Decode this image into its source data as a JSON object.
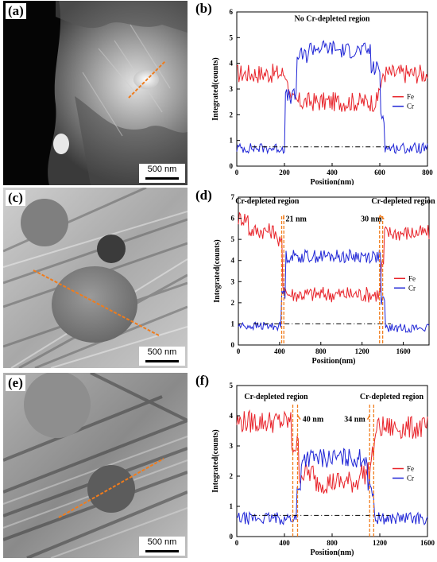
{
  "panels": {
    "a": {
      "tag": "(a)",
      "scale_label": "500 nm"
    },
    "c": {
      "tag": "(c)",
      "scale_label": "500 nm"
    },
    "e": {
      "tag": "(e)",
      "scale_label": "500 nm"
    },
    "b": {
      "tag": "(b)"
    },
    "d": {
      "tag": "(d)"
    },
    "f": {
      "tag": "(f)"
    }
  },
  "colors": {
    "fe": "#e8232a",
    "cr": "#1f25d6",
    "marker": "#f07c1c",
    "reference": "#000000"
  },
  "chart_data": [
    {
      "id": "b",
      "type": "line",
      "xlabel": "Position(nm)",
      "ylabel": "Integrated(counts)",
      "xlim": [
        0,
        800
      ],
      "ylim": [
        0,
        6
      ],
      "xticks": [
        0,
        200,
        400,
        600,
        800
      ],
      "yticks": [
        0,
        1,
        2,
        3,
        4,
        5,
        6
      ],
      "legend": "right",
      "annotations": [
        {
          "text": "No Cr-depleted region",
          "x": 400,
          "y": 5.65
        }
      ],
      "reference_line": 0.75,
      "depleted_markers": [],
      "series": [
        {
          "name": "Fe",
          "segments": [
            [
              0,
              210,
              3.6
            ],
            [
              210,
              225,
              3.1
            ],
            [
              225,
              595,
              2.5
            ],
            [
              595,
              610,
              3.1
            ],
            [
              610,
              800,
              3.6
            ]
          ]
        },
        {
          "name": "Cr",
          "segments": [
            [
              0,
              200,
              0.7
            ],
            [
              200,
              250,
              2.7
            ],
            [
              250,
              300,
              4.3
            ],
            [
              300,
              420,
              4.6
            ],
            [
              420,
              560,
              4.5
            ],
            [
              560,
              600,
              3.8
            ],
            [
              600,
              620,
              2.0
            ],
            [
              620,
              800,
              0.7
            ]
          ]
        }
      ]
    },
    {
      "id": "d",
      "type": "line",
      "xlabel": "Position(nm)",
      "ylabel": "Integrated(counts)",
      "xlim": [
        0,
        1850
      ],
      "ylim": [
        0,
        7
      ],
      "xticks": [
        0,
        400,
        800,
        1200,
        1600
      ],
      "yticks": [
        0,
        1,
        2,
        3,
        4,
        5,
        6,
        7
      ],
      "legend": "right",
      "annotations": [
        {
          "text": "Cr-depleted region",
          "x": 280,
          "y": 6.7
        },
        {
          "text": "21 nm",
          "x": 560,
          "y": 5.85
        },
        {
          "text": "Cr-depleted region",
          "x": 1600,
          "y": 6.7
        },
        {
          "text": "30 nm",
          "x": 1290,
          "y": 5.85
        }
      ],
      "reference_line": 1.0,
      "depleted_markers": [
        [
          420,
          441
        ],
        [
          1370,
          1400
        ]
      ],
      "series": [
        {
          "name": "Fe",
          "segments": [
            [
              0,
              100,
              6.0
            ],
            [
              100,
              380,
              5.4
            ],
            [
              380,
              430,
              4.8
            ],
            [
              430,
              470,
              2.8
            ],
            [
              470,
              1380,
              2.4
            ],
            [
              1380,
              1410,
              3.8
            ],
            [
              1410,
              1850,
              5.3
            ]
          ]
        },
        {
          "name": "Cr",
          "segments": [
            [
              0,
              420,
              0.9
            ],
            [
              420,
              460,
              2.5
            ],
            [
              460,
              1380,
              4.2
            ],
            [
              1380,
              1420,
              2.0
            ],
            [
              1420,
              1850,
              0.8
            ]
          ]
        }
      ]
    },
    {
      "id": "f",
      "type": "line",
      "xlabel": "Position(nm)",
      "ylabel": "Integrated(counts)",
      "xlim": [
        0,
        1600
      ],
      "ylim": [
        0,
        5
      ],
      "xticks": [
        0,
        400,
        800,
        1200,
        1600
      ],
      "yticks": [
        0,
        1,
        2,
        3,
        4,
        5
      ],
      "legend": "right",
      "annotations": [
        {
          "text": "Cr-depleted region",
          "x": 330,
          "y": 4.55
        },
        {
          "text": "40 nm",
          "x": 640,
          "y": 3.8
        },
        {
          "text": "Cr-depleted region",
          "x": 1300,
          "y": 4.55
        },
        {
          "text": "34 nm",
          "x": 990,
          "y": 3.8
        }
      ],
      "reference_line": 0.7,
      "depleted_markers": [
        [
          470,
          510
        ],
        [
          1115,
          1149
        ]
      ],
      "series": [
        {
          "name": "Fe",
          "segments": [
            [
              0,
              460,
              3.8
            ],
            [
              460,
              520,
              3.0
            ],
            [
              520,
              640,
              2.1
            ],
            [
              640,
              1020,
              1.8
            ],
            [
              1020,
              1120,
              2.1
            ],
            [
              1120,
              1160,
              2.8
            ],
            [
              1160,
              1600,
              3.6
            ]
          ]
        },
        {
          "name": "Cr",
          "segments": [
            [
              0,
              500,
              0.6
            ],
            [
              500,
              540,
              1.5
            ],
            [
              540,
              1100,
              2.6
            ],
            [
              1100,
              1150,
              1.6
            ],
            [
              1150,
              1600,
              0.6
            ]
          ]
        }
      ]
    }
  ]
}
